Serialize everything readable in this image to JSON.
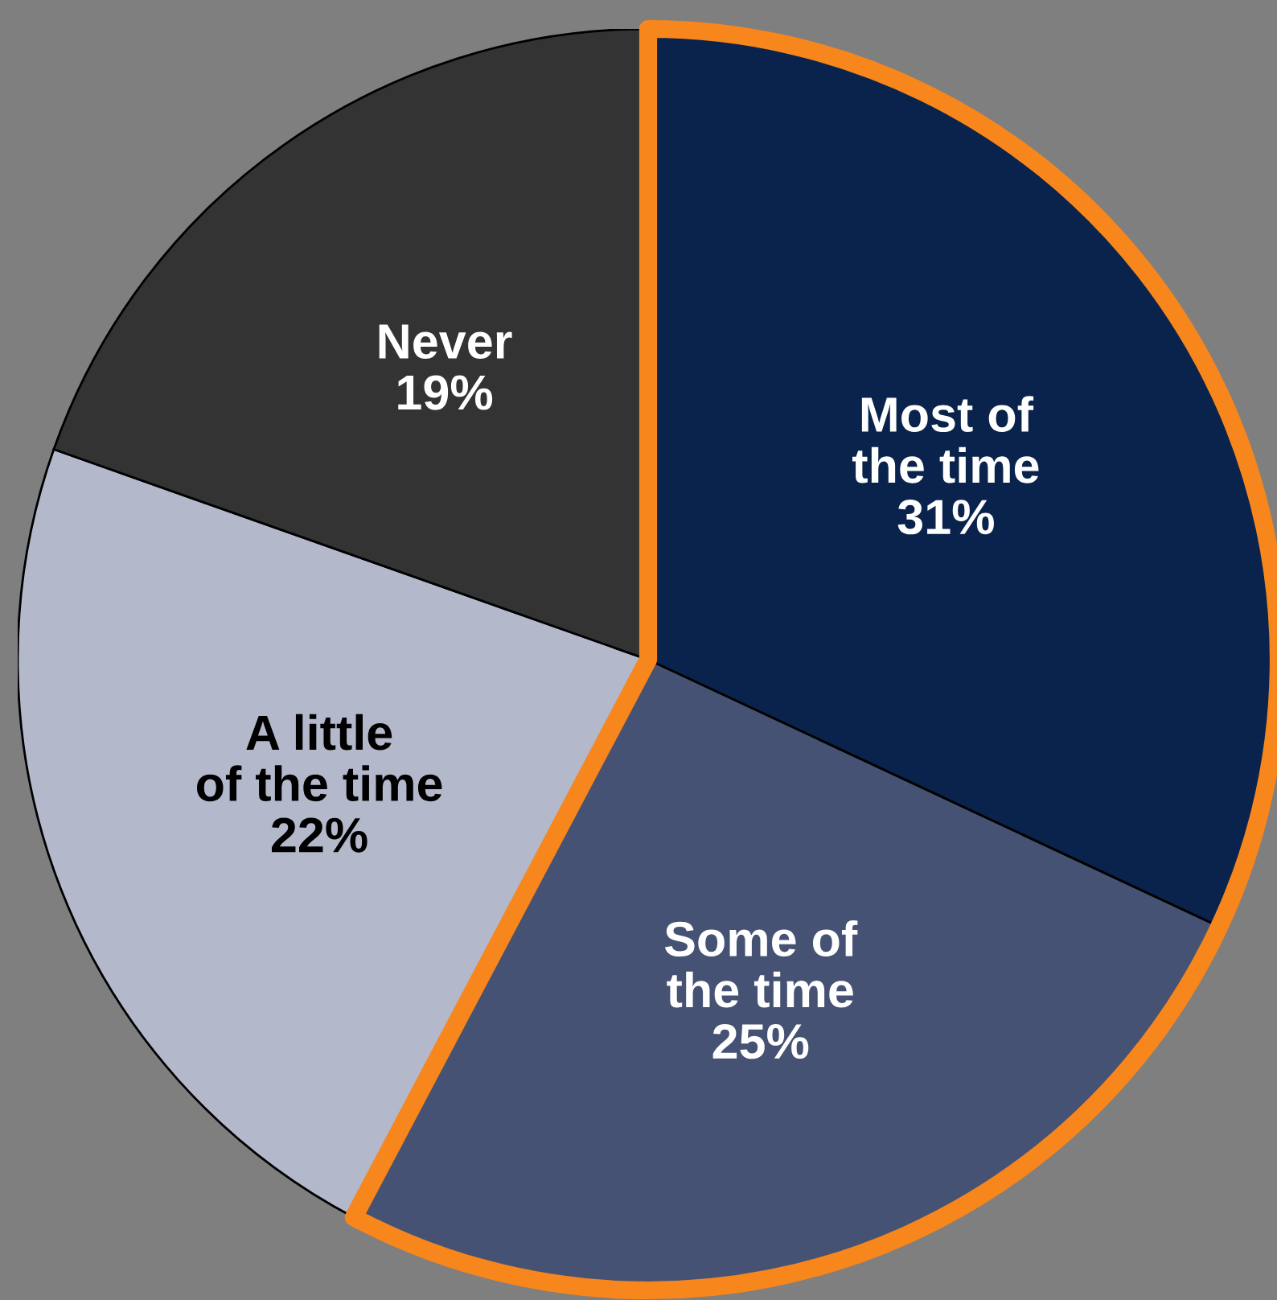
{
  "chart_data": {
    "type": "pie",
    "categories": [
      "Most of\nthe time",
      "Some of\nthe time",
      "A little\nof the time",
      "Never"
    ],
    "values": [
      31,
      25,
      22,
      19
    ],
    "value_labels": [
      "31%",
      "25%",
      "22%",
      "19%"
    ],
    "colors": [
      "#0a234c",
      "#465273",
      "#b4b8cb",
      "#333333"
    ],
    "legend": false
  }
}
